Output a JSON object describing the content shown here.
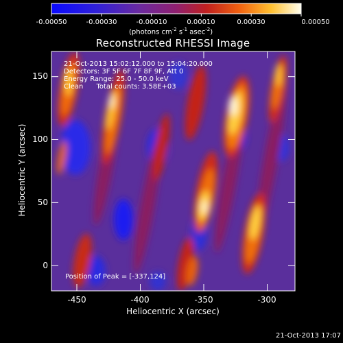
{
  "colorbar": {
    "ticks": [
      "-0.00050",
      "-0.00030",
      "-0.00010",
      "0.00010",
      "0.00030",
      "0.00050"
    ],
    "units_main": "(photons cm",
    "units_sup1": "-2",
    "units_mid": " s",
    "units_sup2": "-1",
    "units_end": " asec",
    "units_sup3": "-2",
    "units_close": ")"
  },
  "title": "Reconstructed RHESSI Image",
  "info": {
    "line1": "21-Oct-2013 15:02:12.000 to 15:04:20.000",
    "line2": "Detectors: 3F 5F 6F 7F 8F 9F, Att 0",
    "line3": "Energy Range: 25.0 - 50.0 keV",
    "line4": "Clean      Total counts: 3.58E+03"
  },
  "peak_label": "Position of Peak = [-337,124]",
  "x_axis": {
    "label": "Heliocentric X (arcsec)",
    "ticks": [
      "-450",
      "-400",
      "-350",
      "-300"
    ],
    "range": [
      -470,
      -278
    ]
  },
  "y_axis": {
    "label": "Heliocentric Y (arcsec)",
    "ticks": [
      "150",
      "100",
      "50",
      "0"
    ],
    "range": [
      -20,
      170
    ]
  },
  "timestamp": "21-Oct-2013 17:07",
  "colors": {
    "background": "#000000",
    "min": "#1010ff",
    "mid": "#6a3aa8",
    "max": "#fffdf0"
  }
}
